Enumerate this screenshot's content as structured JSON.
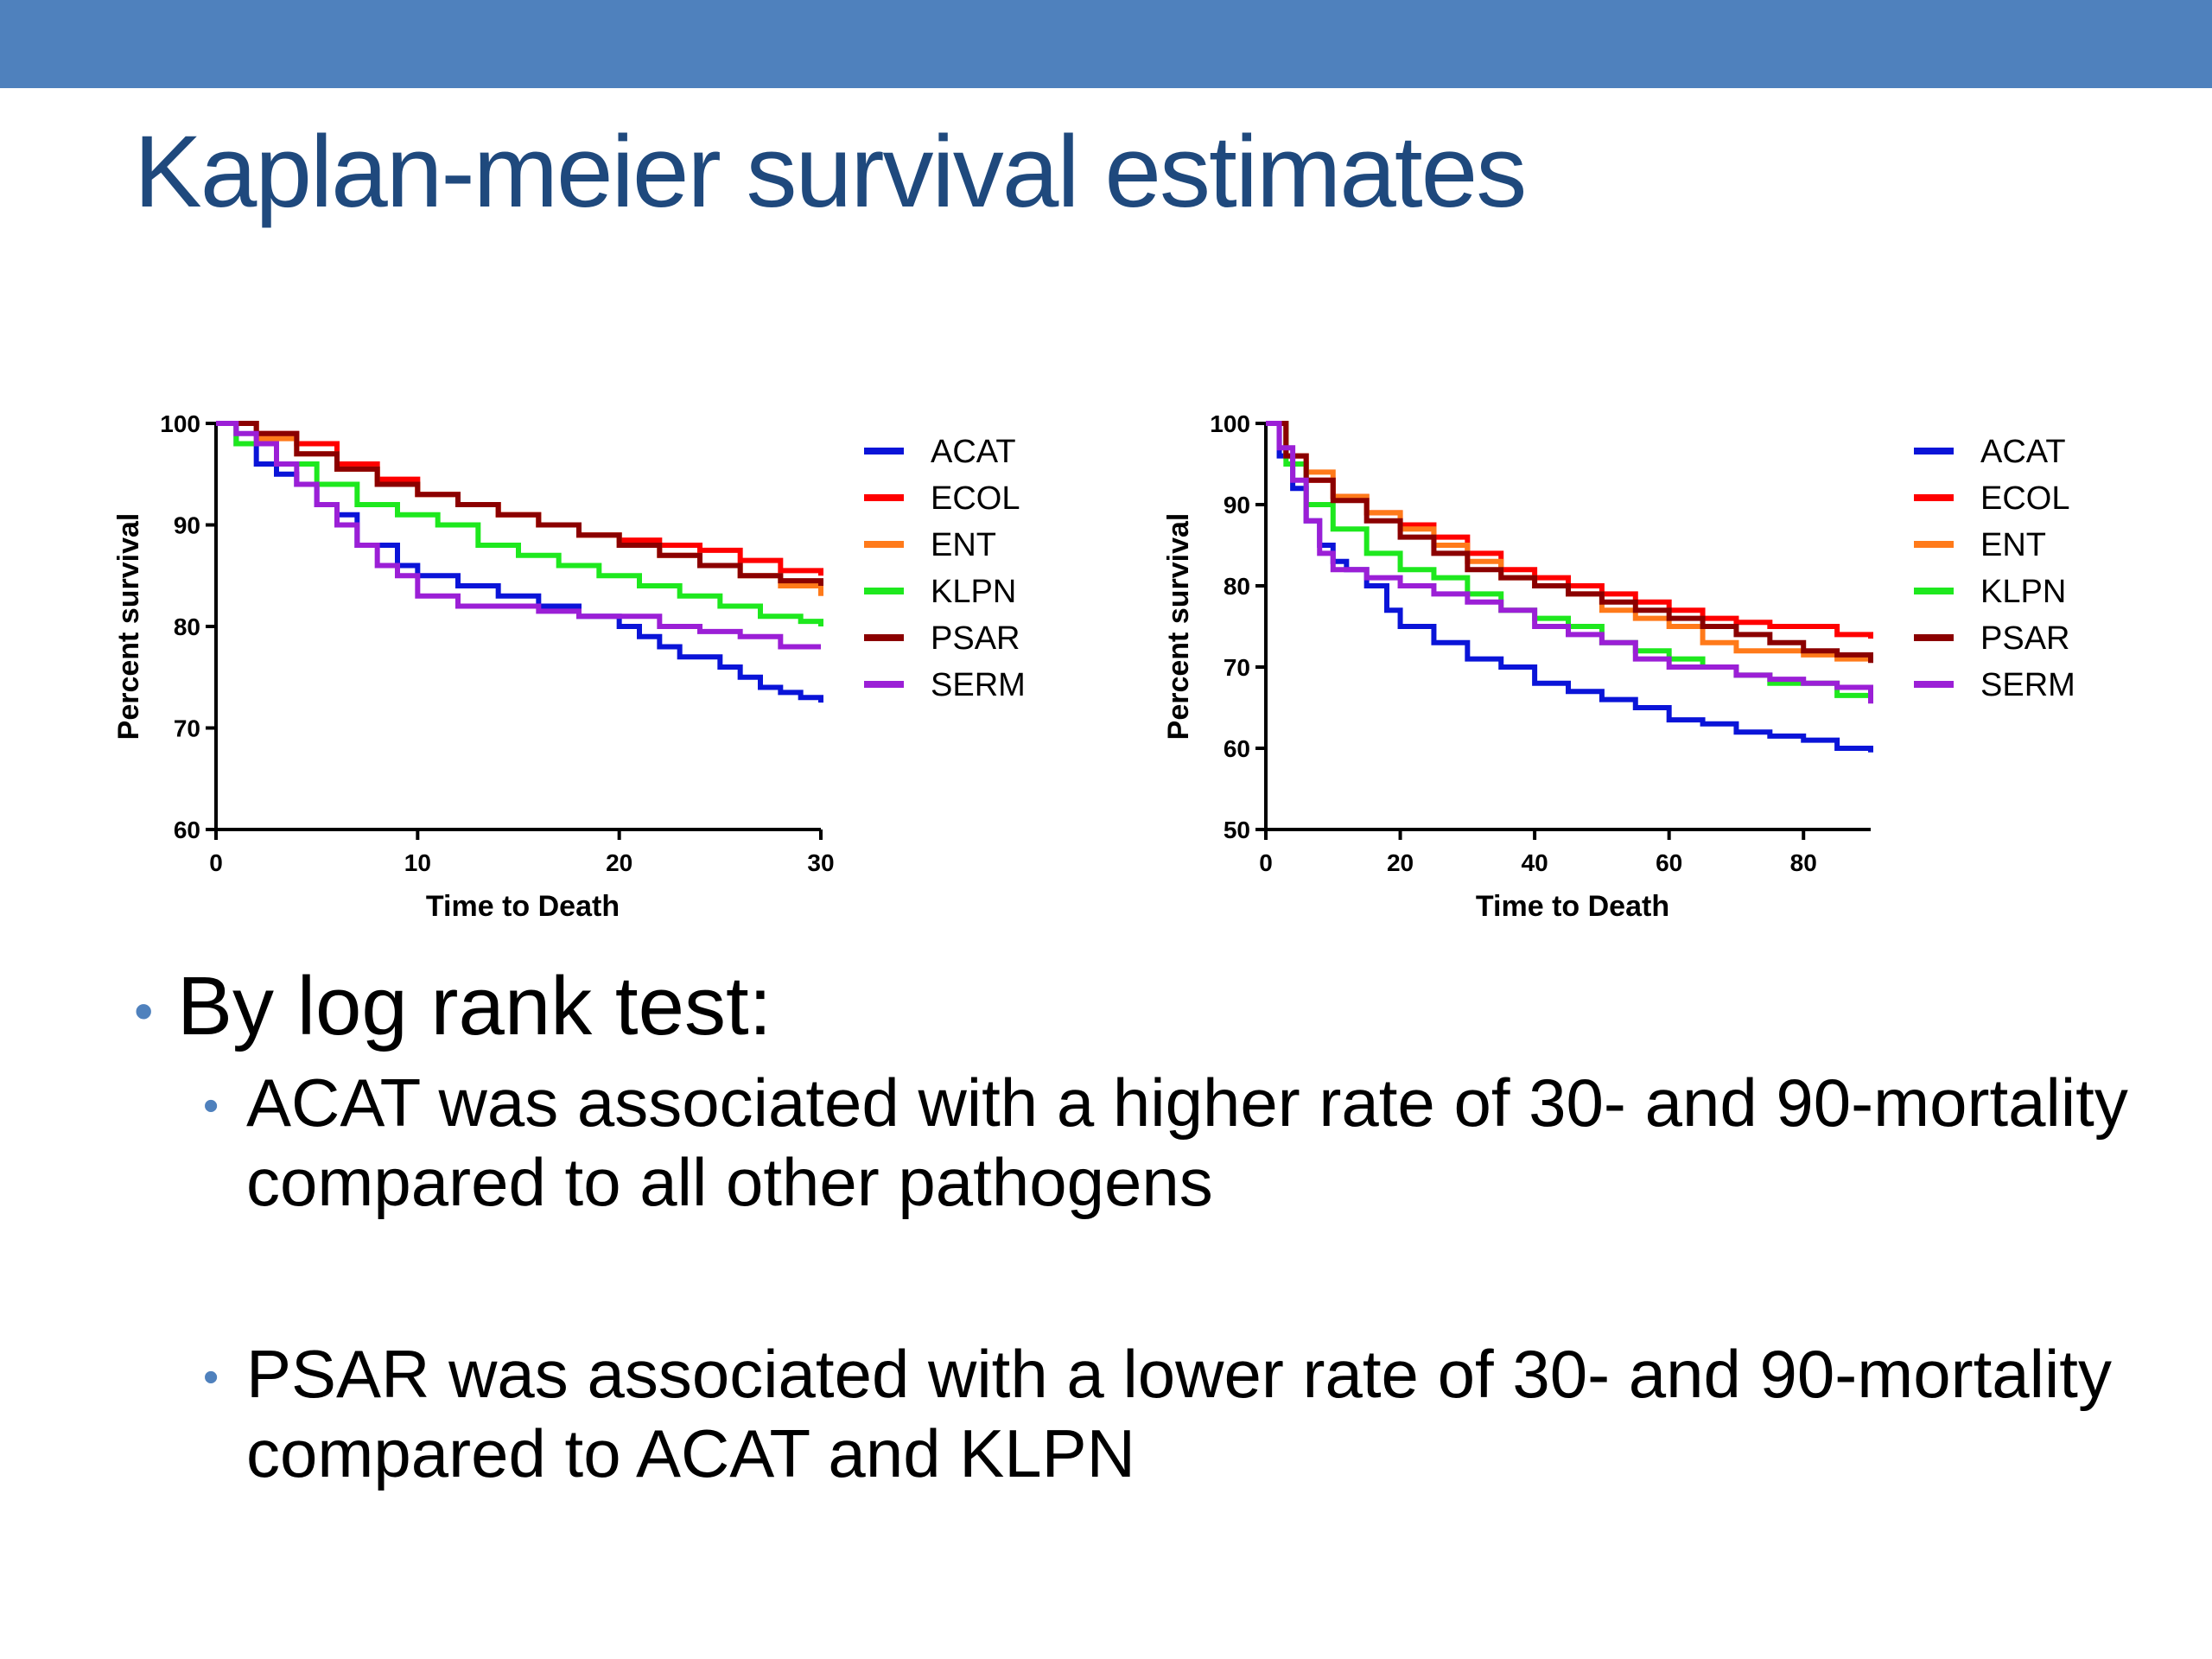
{
  "slide": {
    "title": "Kaplan-meier survival estimates",
    "bullets": [
      {
        "text": "By log rank test:",
        "children": [
          {
            "text": "ACAT was associated with a higher rate of 30- and 90-mortality compared to all other pathogens"
          },
          {
            "text": "PSAR was associated with a lower rate of 30- and 90-mortality compared to ACAT and KLPN"
          }
        ]
      }
    ]
  },
  "colors": {
    "accent_bar": "#4f81bd",
    "title": "#1f497d",
    "bullet": "#4f81bd"
  },
  "chart_data": [
    {
      "type": "line",
      "step": true,
      "xlabel": "Time to Death",
      "ylabel": "Percent survival",
      "xlim": [
        0,
        30
      ],
      "ylim": [
        60,
        100
      ],
      "xticks": [
        0,
        10,
        20,
        30
      ],
      "yticks": [
        60,
        70,
        80,
        90,
        100
      ],
      "legend_position": "right",
      "series": [
        {
          "name": "ACAT",
          "color": "#0a14d8",
          "points": [
            [
              0,
              100
            ],
            [
              1,
              98
            ],
            [
              2,
              96
            ],
            [
              3,
              95
            ],
            [
              4,
              94
            ],
            [
              5,
              92
            ],
            [
              6,
              91
            ],
            [
              7,
              88
            ],
            [
              8,
              88
            ],
            [
              9,
              86
            ],
            [
              10,
              85
            ],
            [
              12,
              84
            ],
            [
              14,
              83
            ],
            [
              16,
              82
            ],
            [
              18,
              81
            ],
            [
              20,
              80
            ],
            [
              21,
              79
            ],
            [
              22,
              78
            ],
            [
              23,
              77
            ],
            [
              25,
              76
            ],
            [
              26,
              75
            ],
            [
              27,
              74
            ],
            [
              28,
              73.5
            ],
            [
              29,
              73
            ],
            [
              30,
              72.5
            ]
          ]
        },
        {
          "name": "ECOL",
          "color": "#ff0000",
          "points": [
            [
              0,
              100
            ],
            [
              2,
              99
            ],
            [
              4,
              98
            ],
            [
              6,
              96
            ],
            [
              8,
              94.5
            ],
            [
              10,
              93
            ],
            [
              12,
              92
            ],
            [
              14,
              91
            ],
            [
              16,
              90
            ],
            [
              18,
              89
            ],
            [
              20,
              88.5
            ],
            [
              22,
              88
            ],
            [
              24,
              87.5
            ],
            [
              26,
              86.5
            ],
            [
              28,
              85.5
            ],
            [
              30,
              85
            ]
          ]
        },
        {
          "name": "ENT",
          "color": "#ff7a1a",
          "points": [
            [
              0,
              100
            ],
            [
              2,
              98.5
            ],
            [
              4,
              97
            ],
            [
              6,
              95.5
            ],
            [
              8,
              94
            ],
            [
              10,
              93
            ],
            [
              12,
              92
            ],
            [
              14,
              91
            ],
            [
              16,
              90
            ],
            [
              18,
              89
            ],
            [
              20,
              88
            ],
            [
              22,
              87
            ],
            [
              24,
              86
            ],
            [
              26,
              85
            ],
            [
              28,
              84
            ],
            [
              30,
              83
            ]
          ]
        },
        {
          "name": "KLPN",
          "color": "#1ee81e",
          "points": [
            [
              0,
              100
            ],
            [
              1,
              98
            ],
            [
              3,
              96
            ],
            [
              5,
              94
            ],
            [
              7,
              92
            ],
            [
              9,
              91
            ],
            [
              11,
              90
            ],
            [
              13,
              88
            ],
            [
              15,
              87
            ],
            [
              17,
              86
            ],
            [
              19,
              85
            ],
            [
              21,
              84
            ],
            [
              23,
              83
            ],
            [
              25,
              82
            ],
            [
              27,
              81
            ],
            [
              29,
              80.5
            ],
            [
              30,
              80
            ]
          ]
        },
        {
          "name": "PSAR",
          "color": "#8b0000",
          "points": [
            [
              0,
              100
            ],
            [
              2,
              99
            ],
            [
              4,
              97
            ],
            [
              6,
              95.5
            ],
            [
              8,
              94
            ],
            [
              10,
              93
            ],
            [
              12,
              92
            ],
            [
              14,
              91
            ],
            [
              16,
              90
            ],
            [
              18,
              89
            ],
            [
              20,
              88
            ],
            [
              22,
              87
            ],
            [
              24,
              86
            ],
            [
              26,
              85
            ],
            [
              28,
              84.5
            ],
            [
              30,
              84
            ]
          ]
        },
        {
          "name": "SERM",
          "color": "#9b1fd6",
          "points": [
            [
              0,
              100
            ],
            [
              1,
              99
            ],
            [
              2,
              98
            ],
            [
              3,
              96
            ],
            [
              4,
              94
            ],
            [
              5,
              92
            ],
            [
              6,
              90
            ],
            [
              7,
              88
            ],
            [
              8,
              86
            ],
            [
              9,
              85
            ],
            [
              10,
              83
            ],
            [
              12,
              82
            ],
            [
              14,
              82
            ],
            [
              16,
              81.5
            ],
            [
              18,
              81
            ],
            [
              20,
              81
            ],
            [
              22,
              80
            ],
            [
              24,
              79.5
            ],
            [
              26,
              79
            ],
            [
              28,
              78
            ],
            [
              30,
              78
            ]
          ]
        }
      ]
    },
    {
      "type": "line",
      "step": true,
      "xlabel": "Time to Death",
      "ylabel": "Percent survival",
      "xlim": [
        0,
        90
      ],
      "ylim": [
        50,
        100
      ],
      "xticks": [
        0,
        20,
        40,
        60,
        80
      ],
      "yticks": [
        50,
        60,
        70,
        80,
        90,
        100
      ],
      "legend_position": "right",
      "series": [
        {
          "name": "ACAT",
          "color": "#0a14d8",
          "points": [
            [
              0,
              100
            ],
            [
              2,
              96
            ],
            [
              4,
              92
            ],
            [
              6,
              88
            ],
            [
              8,
              85
            ],
            [
              10,
              83
            ],
            [
              12,
              82
            ],
            [
              15,
              80
            ],
            [
              18,
              77
            ],
            [
              20,
              75
            ],
            [
              25,
              73
            ],
            [
              30,
              71
            ],
            [
              35,
              70
            ],
            [
              40,
              68
            ],
            [
              45,
              67
            ],
            [
              50,
              66
            ],
            [
              55,
              65
            ],
            [
              60,
              63.5
            ],
            [
              65,
              63
            ],
            [
              70,
              62
            ],
            [
              75,
              61.5
            ],
            [
              80,
              61
            ],
            [
              85,
              60
            ],
            [
              90,
              59.5
            ]
          ]
        },
        {
          "name": "ECOL",
          "color": "#ff0000",
          "points": [
            [
              0,
              100
            ],
            [
              3,
              96
            ],
            [
              6,
              93
            ],
            [
              10,
              91
            ],
            [
              15,
              89
            ],
            [
              20,
              87.5
            ],
            [
              25,
              86
            ],
            [
              30,
              84
            ],
            [
              35,
              82
            ],
            [
              40,
              81
            ],
            [
              45,
              80
            ],
            [
              50,
              79
            ],
            [
              55,
              78
            ],
            [
              60,
              77
            ],
            [
              65,
              76
            ],
            [
              70,
              75.5
            ],
            [
              75,
              75
            ],
            [
              80,
              75
            ],
            [
              85,
              74
            ],
            [
              90,
              73.5
            ]
          ]
        },
        {
          "name": "ENT",
          "color": "#ff7a1a",
          "points": [
            [
              0,
              100
            ],
            [
              3,
              96
            ],
            [
              6,
              94
            ],
            [
              10,
              91
            ],
            [
              15,
              89
            ],
            [
              20,
              87
            ],
            [
              25,
              85
            ],
            [
              30,
              83
            ],
            [
              35,
              81
            ],
            [
              40,
              80
            ],
            [
              45,
              79
            ],
            [
              50,
              77
            ],
            [
              55,
              76
            ],
            [
              60,
              75
            ],
            [
              65,
              73
            ],
            [
              70,
              72
            ],
            [
              75,
              72
            ],
            [
              80,
              71.5
            ],
            [
              85,
              71
            ],
            [
              90,
              71
            ]
          ]
        },
        {
          "name": "KLPN",
          "color": "#1ee81e",
          "points": [
            [
              0,
              100
            ],
            [
              3,
              95
            ],
            [
              6,
              90
            ],
            [
              10,
              87
            ],
            [
              15,
              84
            ],
            [
              20,
              82
            ],
            [
              25,
              81
            ],
            [
              30,
              79
            ],
            [
              35,
              77
            ],
            [
              40,
              76
            ],
            [
              45,
              75
            ],
            [
              50,
              73
            ],
            [
              55,
              72
            ],
            [
              60,
              71
            ],
            [
              65,
              70
            ],
            [
              70,
              69
            ],
            [
              75,
              68
            ],
            [
              80,
              68
            ],
            [
              85,
              66.5
            ],
            [
              90,
              66
            ]
          ]
        },
        {
          "name": "PSAR",
          "color": "#8b0000",
          "points": [
            [
              0,
              100
            ],
            [
              3,
              96
            ],
            [
              6,
              93
            ],
            [
              10,
              90.5
            ],
            [
              15,
              88
            ],
            [
              20,
              86
            ],
            [
              25,
              84
            ],
            [
              30,
              82
            ],
            [
              35,
              81
            ],
            [
              40,
              80
            ],
            [
              45,
              79
            ],
            [
              50,
              78
            ],
            [
              55,
              77
            ],
            [
              60,
              76
            ],
            [
              65,
              75
            ],
            [
              70,
              74
            ],
            [
              75,
              73
            ],
            [
              80,
              72
            ],
            [
              85,
              71.5
            ],
            [
              90,
              70.5
            ]
          ]
        },
        {
          "name": "SERM",
          "color": "#9b1fd6",
          "points": [
            [
              0,
              100
            ],
            [
              2,
              97
            ],
            [
              4,
              93
            ],
            [
              6,
              88
            ],
            [
              8,
              84
            ],
            [
              10,
              82
            ],
            [
              15,
              81
            ],
            [
              20,
              80
            ],
            [
              25,
              79
            ],
            [
              30,
              78
            ],
            [
              35,
              77
            ],
            [
              40,
              75
            ],
            [
              45,
              74
            ],
            [
              50,
              73
            ],
            [
              55,
              71
            ],
            [
              60,
              70
            ],
            [
              65,
              70
            ],
            [
              70,
              69
            ],
            [
              75,
              68.5
            ],
            [
              80,
              68
            ],
            [
              85,
              67.5
            ],
            [
              90,
              65.5
            ]
          ]
        }
      ]
    }
  ]
}
